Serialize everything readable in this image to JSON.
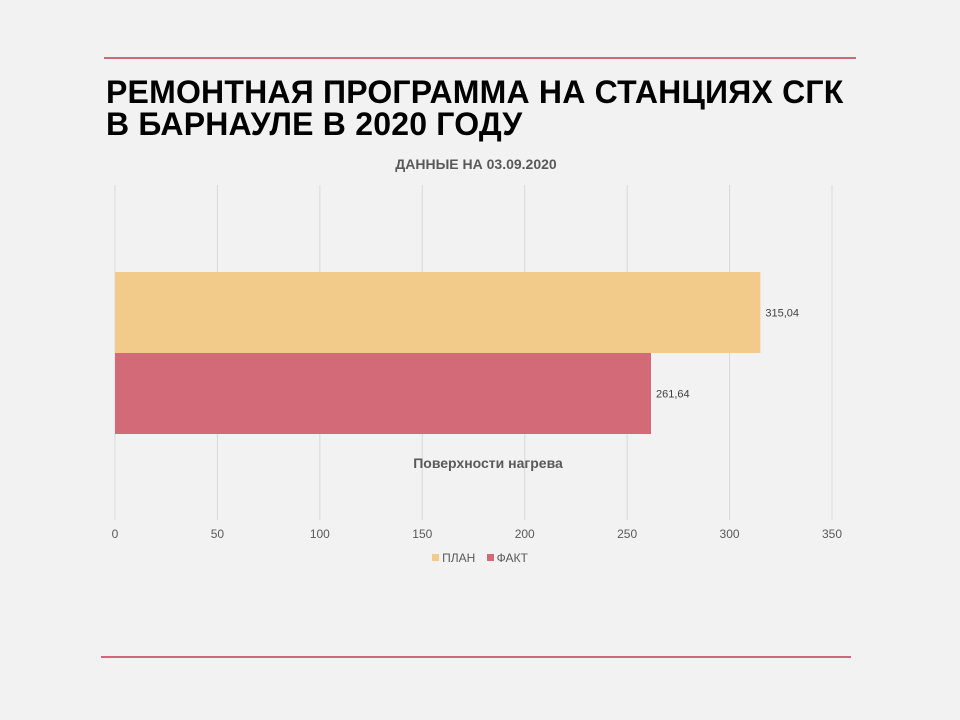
{
  "title_lines": [
    "РЕМОНТНАЯ ПРОГРАММА НА СТАНЦИЯХ СГК",
    "В БАРНАУЛЕ В 2020 ГОДУ"
  ],
  "colors": {
    "accent_rule": "#c9697a"
  },
  "chart_data": {
    "type": "bar",
    "orientation": "horizontal",
    "title": "ДАННЫЕ НА 03.09.2020",
    "categories": [
      "Поверхности нагрева"
    ],
    "series": [
      {
        "name": "ПЛАН",
        "values": [
          315.04
        ],
        "labels": [
          "315,04"
        ],
        "color": "#f2ca8a"
      },
      {
        "name": "ФАКТ",
        "values": [
          261.64
        ],
        "labels": [
          "261,64"
        ],
        "color": "#d26a78"
      }
    ],
    "xlim": [
      0,
      350
    ],
    "xticks": [
      0,
      50,
      100,
      150,
      200,
      250,
      300,
      350
    ],
    "grid": true,
    "legend_position": "bottom"
  }
}
